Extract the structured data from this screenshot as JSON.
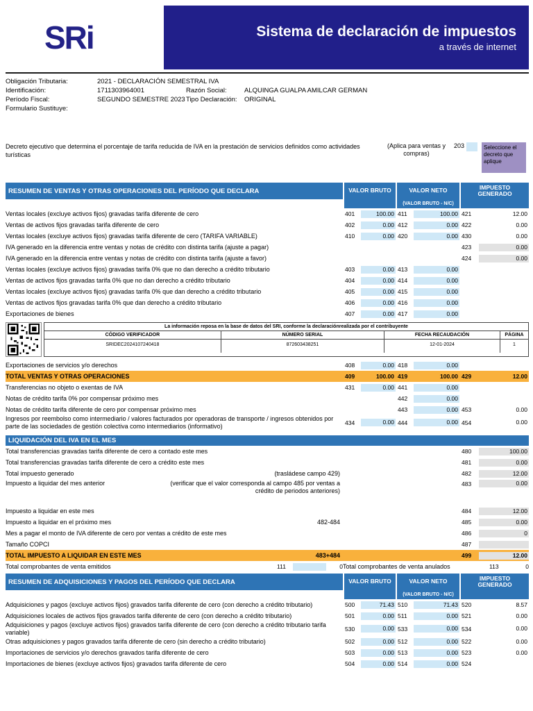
{
  "colors": {
    "brand_navy": "#211f8a",
    "section_blue": "#2e74b5",
    "cell_blue": "#cfe8f7",
    "cell_gray": "#e2e2e2",
    "total_orange": "#f9b13c",
    "select_purple": "#9e90c3"
  },
  "header": {
    "logo": "SRi",
    "title": "Sistema de declaración de impuestos",
    "subtitle": "a través de internet"
  },
  "info": {
    "obligacion_label": "Obligación Tributaria:",
    "obligacion_value": "2021 - DECLARACIÓN SEMESTRAL IVA",
    "identificacion_label": "Identificación:",
    "identificacion_value": "1711303964001",
    "razon_label": "Razón Social:",
    "razon_value": "ALQUINGA GUALPA AMILCAR GERMAN",
    "periodo_label": "Período Fiscal:",
    "periodo_value": "SEGUNDO SEMESTRE 2023",
    "tipo_label": "Tipo Declaración:",
    "tipo_value": "ORIGINAL",
    "sustituye_label": "Formulario Sustituye:",
    "sustituye_value": ""
  },
  "decree": {
    "text": "Decreto ejecutivo que determina el porcentaje de tarifa reducida de IVA en la prestación de servicios definidos como actividades turísticas",
    "applies": "(Aplica para ventas y compras)",
    "code": "203",
    "select_label": "Seleccione el decreto que aplique"
  },
  "columns": {
    "bruto": "VALOR BRUTO",
    "neto": "VALOR NETO",
    "impuesto": "IMPUESTO GENERADO",
    "sub": "(VALOR BRUTO - N/C)"
  },
  "verification": {
    "notice": "La información reposa en la base de datos del SRI, conforme la declaraciónrealizada por el contribuyente",
    "headers": [
      "CÓDIGO VERIFICADOR",
      "NÚMERO SERIAL",
      "FECHA RECAUDACIÓN",
      "PÁGINA"
    ],
    "values": [
      "SRIDEC2024107240418",
      "872603438251",
      "12-01-2024",
      "1"
    ]
  },
  "sales": {
    "title": "RESUMEN DE VENTAS Y OTRAS OPERACIONES DEL PERÍODO QUE DECLARA",
    "rows_top": [
      {
        "label": "Ventas locales (excluye activos fijos) gravadas tarifa diferente de cero",
        "cells": [
          {
            "col": 1,
            "code": "401",
            "value": "100.00",
            "tint": "b"
          },
          {
            "col": 2,
            "code": "411",
            "value": "100.00",
            "tint": "b"
          },
          {
            "col": 3,
            "code": "421",
            "value": "12.00",
            "tint": "w"
          }
        ]
      },
      {
        "label": "Ventas de activos fijos gravadas tarifa diferente de cero",
        "cells": [
          {
            "col": 1,
            "code": "402",
            "value": "0.00",
            "tint": "b"
          },
          {
            "col": 2,
            "code": "412",
            "value": "0.00",
            "tint": "b"
          },
          {
            "col": 3,
            "code": "422",
            "value": "0.00",
            "tint": "w"
          }
        ]
      },
      {
        "label": "Ventas locales (excluye activos fijos) gravadas tarifa diferente de cero (TARIFA VARIABLE)",
        "cells": [
          {
            "col": 1,
            "code": "410",
            "value": "0.00",
            "tint": "b"
          },
          {
            "col": 2,
            "code": "420",
            "value": "0.00",
            "tint": "b"
          },
          {
            "col": 3,
            "code": "430",
            "value": "0.00",
            "tint": "w"
          }
        ]
      },
      {
        "label": "IVA generado en la diferencia entre ventas y notas de crédito con distinta tarifa (ajuste a pagar)",
        "cells": [
          {
            "col": 3,
            "code": "423",
            "value": "0.00",
            "tint": "g"
          }
        ]
      },
      {
        "label": "IVA generado en la diferencia entre ventas y notas de crédito con distinta tarifa (ajuste a favor)",
        "cells": [
          {
            "col": 3,
            "code": "424",
            "value": "0.00",
            "tint": "g"
          }
        ]
      },
      {
        "label": "Ventas locales (excluye activos fijos) gravadas tarifa 0% que no dan derecho a crédito tributario",
        "cells": [
          {
            "col": 1,
            "code": "403",
            "value": "0.00",
            "tint": "b"
          },
          {
            "col": 2,
            "code": "413",
            "value": "0.00",
            "tint": "b"
          }
        ]
      },
      {
        "label": "Ventas de activos fijos gravadas tarifa 0% que no dan derecho a crédito tributario",
        "cells": [
          {
            "col": 1,
            "code": "404",
            "value": "0.00",
            "tint": "b"
          },
          {
            "col": 2,
            "code": "414",
            "value": "0.00",
            "tint": "b"
          }
        ]
      },
      {
        "label": "Ventas locales (excluye activos fijos) gravadas tarifa 0% que dan derecho a crédito tributario",
        "cells": [
          {
            "col": 1,
            "code": "405",
            "value": "0.00",
            "tint": "b"
          },
          {
            "col": 2,
            "code": "415",
            "value": "0.00",
            "tint": "b"
          }
        ]
      },
      {
        "label": "Ventas de activos fijos gravadas tarifa 0% que dan derecho a crédito tributario",
        "cells": [
          {
            "col": 1,
            "code": "406",
            "value": "0.00",
            "tint": "b"
          },
          {
            "col": 2,
            "code": "416",
            "value": "0.00",
            "tint": "b"
          }
        ]
      },
      {
        "label": "Exportaciones de bienes",
        "cells": [
          {
            "col": 1,
            "code": "407",
            "value": "0.00",
            "tint": "b"
          },
          {
            "col": 2,
            "code": "417",
            "value": "0.00",
            "tint": "b"
          }
        ]
      }
    ],
    "rows_bottom": [
      {
        "label": "Exportaciones de servicios y/o derechos",
        "cells": [
          {
            "col": 1,
            "code": "408",
            "value": "0.00",
            "tint": "b"
          },
          {
            "col": 2,
            "code": "418",
            "value": "0.00",
            "tint": "b"
          }
        ]
      },
      {
        "type": "total",
        "label": "TOTAL VENTAS Y OTRAS OPERACIONES",
        "cells": [
          {
            "col": 1,
            "code": "409",
            "value": "100.00",
            "tint": "w"
          },
          {
            "col": 2,
            "code": "419",
            "value": "100.00",
            "tint": "w"
          },
          {
            "col": 3,
            "code": "429",
            "value": "12.00",
            "tint": "w"
          }
        ]
      },
      {
        "label": "Transferencias no objeto o exentas de IVA",
        "cells": [
          {
            "col": 1,
            "code": "431",
            "value": "0.00",
            "tint": "b"
          },
          {
            "col": 2,
            "code": "441",
            "value": "0.00",
            "tint": "b"
          }
        ]
      },
      {
        "label": "Notas de crédito tarifa 0% por compensar próximo mes",
        "cells": [
          {
            "col": 2,
            "code": "442",
            "value": "0.00",
            "tint": "b"
          }
        ]
      },
      {
        "label": "Notas de crédito tarifa diferente de cero por compensar próximo mes",
        "cells": [
          {
            "col": 2,
            "code": "443",
            "value": "0.00",
            "tint": "b"
          },
          {
            "col": 3,
            "code": "453",
            "value": "0.00",
            "tint": "w"
          }
        ]
      },
      {
        "label": "Ingresos por reembolso como intermediario / valores facturados por operadoras de transporte / ingresos obtenidos por parte de las sociedades de gestión colectiva como intermediarios (informativo)",
        "cells": [
          {
            "col": 1,
            "code": "434",
            "value": "0.00",
            "tint": "b"
          },
          {
            "col": 2,
            "code": "444",
            "value": "0.00",
            "tint": "b"
          },
          {
            "col": 3,
            "code": "454",
            "value": "0.00",
            "tint": "w"
          }
        ]
      }
    ]
  },
  "liquidation": {
    "title": "LIQUIDACIÓN DEL IVA EN EL MES",
    "rows": [
      {
        "label": "Total transferencias gravadas tarifa diferente de cero a contado este mes",
        "cells": [
          {
            "col": 3,
            "code": "480",
            "value": "100.00",
            "tint": "g"
          }
        ]
      },
      {
        "label": "Total transferencias gravadas tarifa diferente de cero a crédito este mes",
        "cells": [
          {
            "col": 3,
            "code": "481",
            "value": "0.00",
            "tint": "g"
          }
        ]
      },
      {
        "label": "Total impuesto generado",
        "note": "(trasládese campo 429)",
        "cells": [
          {
            "col": 3,
            "code": "482",
            "value": "12.00",
            "tint": "g"
          }
        ]
      },
      {
        "label": "Impuesto a liquidar del mes anterior",
        "tall": true,
        "note": "(verificar que el valor corresponda al campo 485 por ventas a crédito de periodos anteriores)",
        "cells": [
          {
            "col": 3,
            "code": "483",
            "value": "0.00",
            "tint": "g"
          }
        ]
      },
      {
        "label": "Impuesto a liquidar en este mes",
        "cells": [
          {
            "col": 3,
            "code": "484",
            "value": "12.00",
            "tint": "g"
          }
        ]
      },
      {
        "label": "Impuesto a liquidar en el próximo mes",
        "note": "482-484",
        "cells": [
          {
            "col": 3,
            "code": "485",
            "value": "0.00",
            "tint": "g"
          }
        ]
      },
      {
        "label": "Mes a pagar el monto de IVA diferente de cero por ventas a crédito de este mes",
        "cells": [
          {
            "col": 3,
            "code": "486",
            "value": "0",
            "tint": "g"
          }
        ]
      },
      {
        "label": "Tamaño COPCI",
        "cells": [
          {
            "col": 3,
            "code": "487",
            "value": "",
            "tint": "g"
          }
        ]
      },
      {
        "type": "total",
        "label": "TOTAL IMPUESTO A LIQUIDAR EN ESTE MES",
        "note": "483+484",
        "cells": [
          {
            "col": 3,
            "code": "499",
            "value": "12.00",
            "tint": "g"
          }
        ]
      },
      {
        "type": "dual",
        "label": "Total comprobantes de venta emitidos",
        "code1": "111",
        "value1": "0",
        "label2": "Total comprobantes de venta anulados",
        "code2": "113",
        "value2": "0"
      }
    ]
  },
  "purchases": {
    "title": "RESUMEN DE ADQUISICIONES Y PAGOS DEL PERÍODO QUE DECLARA",
    "rows": [
      {
        "label": "Adquisiciones y pagos (excluye activos fijos) gravados tarifa diferente de cero (con derecho a crédito tributario)",
        "cells": [
          {
            "col": 1,
            "code": "500",
            "value": "71.43",
            "tint": "b"
          },
          {
            "col": 2,
            "code": "510",
            "value": "71.43",
            "tint": "b"
          },
          {
            "col": 3,
            "code": "520",
            "value": "8.57",
            "tint": "w"
          }
        ]
      },
      {
        "label": "Adquisiciones locales de activos fijos gravados tarifa diferente de cero (con derecho a crédito tributario)",
        "cells": [
          {
            "col": 1,
            "code": "501",
            "value": "0.00",
            "tint": "b"
          },
          {
            "col": 2,
            "code": "511",
            "value": "0.00",
            "tint": "b"
          },
          {
            "col": 3,
            "code": "521",
            "value": "0.00",
            "tint": "w"
          }
        ]
      },
      {
        "label": "Adquisiciones y pagos (excluye activos fijos) gravados tarifa diferente de cero (con derecho a crédito tributario tarifa variable)",
        "cells": [
          {
            "col": 1,
            "code": "530",
            "value": "0.00",
            "tint": "b"
          },
          {
            "col": 2,
            "code": "533",
            "value": "0.00",
            "tint": "b"
          },
          {
            "col": 3,
            "code": "534",
            "value": "0.00",
            "tint": "w"
          }
        ]
      },
      {
        "label": "Otras adquisiciones y pagos gravados tarifa diferente de cero (sin derecho a crédito tributario)",
        "cells": [
          {
            "col": 1,
            "code": "502",
            "value": "0.00",
            "tint": "b"
          },
          {
            "col": 2,
            "code": "512",
            "value": "0.00",
            "tint": "b"
          },
          {
            "col": 3,
            "code": "522",
            "value": "0.00",
            "tint": "w"
          }
        ]
      },
      {
        "label": "Importaciones de servicios y/o derechos gravados tarifa diferente de cero",
        "cells": [
          {
            "col": 1,
            "code": "503",
            "value": "0.00",
            "tint": "b"
          },
          {
            "col": 2,
            "code": "513",
            "value": "0.00",
            "tint": "b"
          },
          {
            "col": 3,
            "code": "523",
            "value": "0.00",
            "tint": "w"
          }
        ]
      },
      {
        "label": "Importaciones de bienes (excluye activos fijos) gravados tarifa diferente de cero",
        "cells": [
          {
            "col": 1,
            "code": "504",
            "value": "0.00",
            "tint": "b"
          },
          {
            "col": 2,
            "code": "514",
            "value": "0.00",
            "tint": "b"
          },
          {
            "col": 3,
            "code": "524",
            "value": "",
            "tint": "w"
          }
        ]
      }
    ]
  }
}
